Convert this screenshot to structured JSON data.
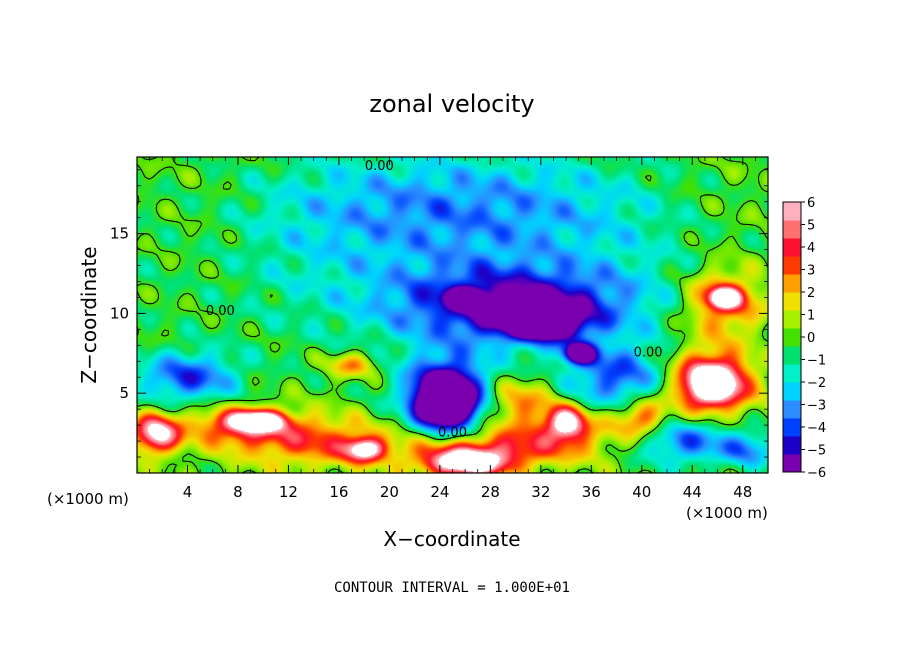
{
  "chart_data": {
    "type": "heatmap",
    "title": "zonal velocity",
    "xlabel": "X−coordinate",
    "ylabel": "Z−coordinate",
    "x_unit_left": "(×1000 m)",
    "x_unit_right": "(×1000 m)",
    "xlim": [
      0,
      50
    ],
    "ylim": [
      0,
      19.8
    ],
    "xticks": [
      4,
      8,
      12,
      16,
      20,
      24,
      28,
      32,
      36,
      40,
      44,
      48
    ],
    "yticks": [
      5,
      10,
      15
    ],
    "colorbar": {
      "ticks": [
        "6",
        "5",
        "4",
        "3",
        "2",
        "1",
        "0",
        "−1",
        "−2",
        "−3",
        "−4",
        "−5",
        "−6"
      ],
      "range": [
        -6,
        6
      ],
      "colors": [
        "#7a00b0",
        "#1c00c8",
        "#0040ff",
        "#2a8cff",
        "#00d2ff",
        "#00f0c8",
        "#00e070",
        "#44e000",
        "#a8f000",
        "#f0e000",
        "#ffa000",
        "#ff3a00",
        "#ff1030",
        "#ff7070",
        "#ffb0c0"
      ]
    },
    "contour_labels": [
      {
        "text": "0.00",
        "x": 19.2,
        "z": 19.3
      },
      {
        "text": "0.00",
        "x": 6.6,
        "z": 10.2
      },
      {
        "text": "0.00",
        "x": 40.5,
        "z": 7.6
      },
      {
        "text": "0.00",
        "x": 25.0,
        "z": 2.6
      }
    ],
    "blobs": [
      {
        "x": 25,
        "z": 14,
        "rx": 26,
        "rz": 6,
        "v": -2.2
      },
      {
        "x": 25,
        "z": 17,
        "rx": 14,
        "rz": 3,
        "v": -1.8
      },
      {
        "x": 5,
        "z": 15,
        "rx": 6,
        "rz": 5,
        "v": 0.9
      },
      {
        "x": 47,
        "z": 16,
        "rx": 6,
        "rz": 4,
        "v": 0.9
      },
      {
        "x": 30,
        "z": 10.5,
        "rx": 9,
        "rz": 2.2,
        "v": -5.2
      },
      {
        "x": 32,
        "z": 9.5,
        "rx": 3,
        "rz": 1.1,
        "v": -7
      },
      {
        "x": 26,
        "z": 11,
        "rx": 1.2,
        "rz": 0.5,
        "v": -7
      },
      {
        "x": 35,
        "z": 7.5,
        "rx": 1.2,
        "rz": 0.6,
        "v": -7
      },
      {
        "x": 24.5,
        "z": 4.8,
        "rx": 3.5,
        "rz": 2.6,
        "v": -6
      },
      {
        "x": 24.5,
        "z": 4.6,
        "rx": 2.2,
        "rz": 1.5,
        "v": -7
      },
      {
        "x": 4,
        "z": 6,
        "rx": 4,
        "rz": 1.6,
        "v": -4.2
      },
      {
        "x": 38,
        "z": 6,
        "rx": 4,
        "rz": 2,
        "v": -4
      },
      {
        "x": 46.5,
        "z": 10.8,
        "rx": 3.2,
        "rz": 2,
        "v": 4.6
      },
      {
        "x": 46.5,
        "z": 11,
        "rx": 1.2,
        "rz": 0.6,
        "v": 7
      },
      {
        "x": 45.5,
        "z": 5.8,
        "rx": 3.5,
        "rz": 2.2,
        "v": 5
      },
      {
        "x": 45.5,
        "z": 5.6,
        "rx": 2,
        "rz": 1.2,
        "v": 7
      },
      {
        "x": 14,
        "z": 2,
        "rx": 6,
        "rz": 1.6,
        "v": 3.5
      },
      {
        "x": 27,
        "z": 1.4,
        "rx": 6,
        "rz": 1.2,
        "v": 4.5
      },
      {
        "x": 26,
        "z": 0.6,
        "rx": 3,
        "rz": 0.8,
        "v": 7
      },
      {
        "x": 8,
        "z": 3,
        "rx": 4,
        "rz": 1.2,
        "v": 4
      },
      {
        "x": 9.5,
        "z": 3.3,
        "rx": 2,
        "rz": 0.6,
        "v": 7
      },
      {
        "x": 1.5,
        "z": 2.5,
        "rx": 1.8,
        "rz": 1.2,
        "v": 7
      },
      {
        "x": 34,
        "z": 2.5,
        "rx": 5,
        "rz": 1.5,
        "v": 2.5
      },
      {
        "x": 34,
        "z": 3.2,
        "rx": 1.5,
        "rz": 1.0,
        "v": 6
      },
      {
        "x": 18,
        "z": 1.5,
        "rx": 1.5,
        "rz": 0.7,
        "v": 6
      },
      {
        "x": 43.5,
        "z": 2,
        "rx": 4,
        "rz": 1.5,
        "v": -4
      },
      {
        "x": 48.5,
        "z": 1.5,
        "rx": 2,
        "rz": 1.2,
        "v": -3
      },
      {
        "x": 17,
        "z": 6.8,
        "rx": 2,
        "rz": 0.8,
        "v": 3
      },
      {
        "x": 30,
        "z": 4.5,
        "rx": 3,
        "rz": 1.5,
        "v": 3
      },
      {
        "x": 40,
        "z": 3.5,
        "rx": 2,
        "rz": 1.2,
        "v": 4
      }
    ]
  },
  "footer": {
    "contour_interval": "CONTOUR INTERVAL = 1.000E+01"
  }
}
